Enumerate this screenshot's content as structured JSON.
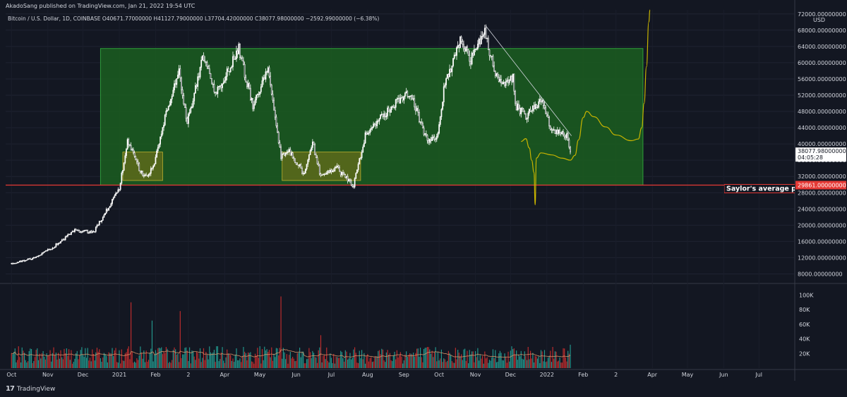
{
  "attribution": "AkadoSang published on TradingView.com, Jan 21, 2022 19:54 UTC",
  "legend": "Bitcoin / U.S. Dollar, 1D, COINBASE  O40671.77000000  H41127.79000000  L37704.42000000  C38077.98000000  −2592.99000000 (−6.38%)",
  "brand": "TradingView",
  "currency": "USD",
  "colors": {
    "background": "#131722",
    "up": "#ffffff",
    "down": "#ffffff",
    "box": "#1b5e20",
    "box_edge": "#2e9d3a",
    "zone": "#827717",
    "support": "#e53935",
    "projection": "#c8b400",
    "vol_up": "#26a69a",
    "vol_down": "#d32f2f"
  },
  "last_price_label": {
    "price": "38077.98000000",
    "countdown": "04:05:28"
  },
  "support_label": {
    "price": "29861.00000000",
    "text": "Saylor's average price"
  },
  "chart_data": [
    {
      "type": "candlestick",
      "title": "Bitcoin / U.S. Dollar, 1D, COINBASE",
      "x_ticks": [
        "Oct",
        "Nov",
        "Dec",
        "2021",
        "Feb",
        "2",
        "Apr",
        "May",
        "Jun",
        "Jul",
        "Aug",
        "Sep",
        "Oct",
        "Nov",
        "Dec",
        "2022",
        "Feb",
        "2",
        "Apr",
        "May",
        "Jun",
        "Jul"
      ],
      "y_ticks": [
        "72000.00000000",
        "68000.00000000",
        "64000.00000000",
        "60000.00000000",
        "56000.00000000",
        "52000.00000000",
        "48000.00000000",
        "44000.00000000",
        "40000.00000000",
        "36000.00000000",
        "32000.00000000",
        "28000.00000000",
        "24000.00000000",
        "20000.00000000",
        "16000.00000000",
        "12000.00000000",
        "8000.00000000"
      ],
      "ylim": [
        6000,
        73000
      ],
      "series_name": "BTCUSD",
      "close_anchors": [
        [
          "2020-10-01",
          10600
        ],
        [
          "2020-10-20",
          11900
        ],
        [
          "2020-11-05",
          14500
        ],
        [
          "2020-11-24",
          18700
        ],
        [
          "2020-12-10",
          18300
        ],
        [
          "2020-12-20",
          23000
        ],
        [
          "2021-01-01",
          29000
        ],
        [
          "2021-01-08",
          40500
        ],
        [
          "2021-01-22",
          31500
        ],
        [
          "2021-01-30",
          34000
        ],
        [
          "2021-02-09",
          46400
        ],
        [
          "2021-02-21",
          57500
        ],
        [
          "2021-02-28",
          45200
        ],
        [
          "2021-03-13",
          61200
        ],
        [
          "2021-03-25",
          52400
        ],
        [
          "2021-04-13",
          63500
        ],
        [
          "2021-04-25",
          49100
        ],
        [
          "2021-05-08",
          58800
        ],
        [
          "2021-05-19",
          37000
        ],
        [
          "2021-05-25",
          38800
        ],
        [
          "2021-06-08",
          32500
        ],
        [
          "2021-06-15",
          40300
        ],
        [
          "2021-06-22",
          31800
        ],
        [
          "2021-07-05",
          34200
        ],
        [
          "2021-07-20",
          29800
        ],
        [
          "2021-07-30",
          42200
        ],
        [
          "2021-08-10",
          45800
        ],
        [
          "2021-08-22",
          49300
        ],
        [
          "2021-09-06",
          52600
        ],
        [
          "2021-09-21",
          40700
        ],
        [
          "2021-09-29",
          41500
        ],
        [
          "2021-10-06",
          55000
        ],
        [
          "2021-10-20",
          65900
        ],
        [
          "2021-10-28",
          60600
        ],
        [
          "2021-11-09",
          67500
        ],
        [
          "2021-11-18",
          56900
        ],
        [
          "2021-11-26",
          54000
        ],
        [
          "2021-12-03",
          56500
        ],
        [
          "2021-12-05",
          49300
        ],
        [
          "2021-12-14",
          47000
        ],
        [
          "2021-12-27",
          50600
        ],
        [
          "2022-01-05",
          43300
        ],
        [
          "2022-01-13",
          42600
        ],
        [
          "2022-01-19",
          41800
        ],
        [
          "2022-01-21",
          38078
        ]
      ],
      "last_candle": {
        "date": "2022-01-21",
        "open": 40671.77,
        "high": 41127.79,
        "low": 37704.42,
        "close": 38077.98,
        "change": -2592.99,
        "change_pct": -6.38
      },
      "annotations": {
        "big_range_box": {
          "from": "2020-12-16",
          "to": "2022-03-24",
          "low": 29861,
          "high": 63500
        },
        "accumulation_zones": [
          {
            "from": "2021-01-04",
            "to": "2021-02-07",
            "low": 31000,
            "high": 38000
          },
          {
            "from": "2021-05-20",
            "to": "2021-07-26",
            "low": 31000,
            "high": 38000
          }
        ],
        "support_line": {
          "value": 29861
        },
        "downtrend_line": {
          "from": [
            "2021-11-10",
            69000
          ],
          "to": [
            "2022-01-22",
            42000
          ]
        },
        "projection_path": [
          [
            "2021-12-10",
            40600
          ],
          [
            "2021-12-14",
            41300
          ],
          [
            "2021-12-17",
            39000
          ],
          [
            "2021-12-19",
            36000
          ],
          [
            "2021-12-21",
            33000
          ],
          [
            "2021-12-22",
            25000
          ],
          [
            "2021-12-23",
            36500
          ],
          [
            "2021-12-27",
            37800
          ],
          [
            "2022-01-05",
            37300
          ],
          [
            "2022-01-14",
            36500
          ],
          [
            "2022-01-21",
            36000
          ],
          [
            "2022-01-25",
            37200
          ],
          [
            "2022-01-28",
            41000
          ],
          [
            "2022-02-01",
            46500
          ],
          [
            "2022-02-04",
            48000
          ],
          [
            "2022-02-10",
            46700
          ],
          [
            "2022-02-20",
            44200
          ],
          [
            "2022-03-01",
            42200
          ],
          [
            "2022-03-14",
            40800
          ],
          [
            "2022-03-20",
            41200
          ],
          [
            "2022-03-23",
            44000
          ],
          [
            "2022-03-25",
            50000
          ],
          [
            "2022-03-27",
            59000
          ],
          [
            "2022-03-29",
            70000
          ],
          [
            "2022-03-30",
            73000
          ]
        ]
      }
    },
    {
      "type": "bar",
      "title": "Volume",
      "y_ticks": [
        "100K",
        "80K",
        "60K",
        "40K",
        "20K"
      ],
      "ylim": [
        0,
        110000
      ],
      "volume_baseline": 15000,
      "spikes": [
        [
          "2021-01-11",
          90000
        ],
        [
          "2021-01-29",
          65000
        ],
        [
          "2021-02-22",
          78000
        ],
        [
          "2021-05-19",
          98000
        ],
        [
          "2021-06-22",
          45000
        ],
        [
          "2021-12-04",
          27000
        ],
        [
          "2022-01-21",
          32000
        ]
      ],
      "ma_label": "MA"
    }
  ]
}
